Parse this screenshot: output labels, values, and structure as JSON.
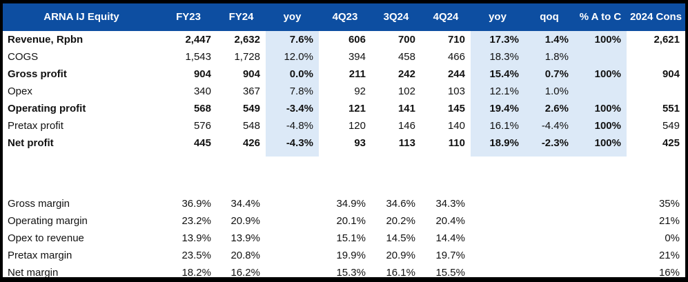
{
  "colors": {
    "header_bg": "#0D4EA1",
    "header_text": "#FFFFFF",
    "shade": "#DCE9F7",
    "border": "#000000"
  },
  "header": {
    "labels": [
      "ARNA IJ Equity",
      "FY23",
      "FY24",
      "yoy",
      "4Q23",
      "3Q24",
      "4Q24",
      "yoy",
      "qoq",
      "% A to C",
      "2024 Cons"
    ]
  },
  "body": {
    "rows": [
      {
        "label": "Revenue, Rpbn",
        "bold": true,
        "values": [
          "2,447",
          "2,632",
          "7.6%",
          "606",
          "700",
          "710",
          "17.3%",
          "1.4%",
          "100%",
          "2,621"
        ]
      },
      {
        "label": "COGS",
        "bold": false,
        "values": [
          "1,543",
          "1,728",
          "12.0%",
          "394",
          "458",
          "466",
          "18.3%",
          "1.8%",
          "",
          ""
        ]
      },
      {
        "label": "Gross profit",
        "bold": true,
        "values": [
          "904",
          "904",
          "0.0%",
          "211",
          "242",
          "244",
          "15.4%",
          "0.7%",
          "100%",
          "904"
        ]
      },
      {
        "label": "Opex",
        "bold": false,
        "values": [
          "340",
          "367",
          "7.8%",
          "92",
          "102",
          "103",
          "12.1%",
          "1.0%",
          "",
          ""
        ]
      },
      {
        "label": "Operating profit",
        "bold": true,
        "values": [
          "568",
          "549",
          "-3.4%",
          "121",
          "141",
          "145",
          "19.4%",
          "2.6%",
          "100%",
          "551"
        ]
      },
      {
        "label": "Pretax profit",
        "bold": false,
        "values": [
          "576",
          "548",
          "-4.8%",
          "120",
          "146",
          "140",
          "16.1%",
          "-4.4%",
          "100%",
          "549"
        ]
      },
      {
        "label": "Net profit",
        "bold": true,
        "values": [
          "445",
          "426",
          "-4.3%",
          "93",
          "113",
          "110",
          "18.9%",
          "-2.3%",
          "100%",
          "425"
        ]
      }
    ],
    "margin_rows": [
      {
        "label": "Gross margin",
        "bold": false,
        "values": [
          "36.9%",
          "34.4%",
          "",
          "34.9%",
          "34.6%",
          "34.3%",
          "",
          "",
          "",
          "35%"
        ]
      },
      {
        "label": "Operating margin",
        "bold": false,
        "values": [
          "23.2%",
          "20.9%",
          "",
          "20.1%",
          "20.2%",
          "20.4%",
          "",
          "",
          "",
          "21%"
        ]
      },
      {
        "label": "Opex to revenue",
        "bold": false,
        "values": [
          "13.9%",
          "13.9%",
          "",
          "15.1%",
          "14.5%",
          "14.4%",
          "",
          "",
          "",
          "0%"
        ]
      },
      {
        "label": "Pretax margin",
        "bold": false,
        "values": [
          "23.5%",
          "20.8%",
          "",
          "19.9%",
          "20.9%",
          "19.7%",
          "",
          "",
          "",
          "21%"
        ]
      },
      {
        "label": "Net margin",
        "bold": false,
        "values": [
          "18.2%",
          "16.2%",
          "",
          "15.3%",
          "16.1%",
          "15.5%",
          "",
          "",
          "",
          "16%"
        ]
      }
    ]
  }
}
